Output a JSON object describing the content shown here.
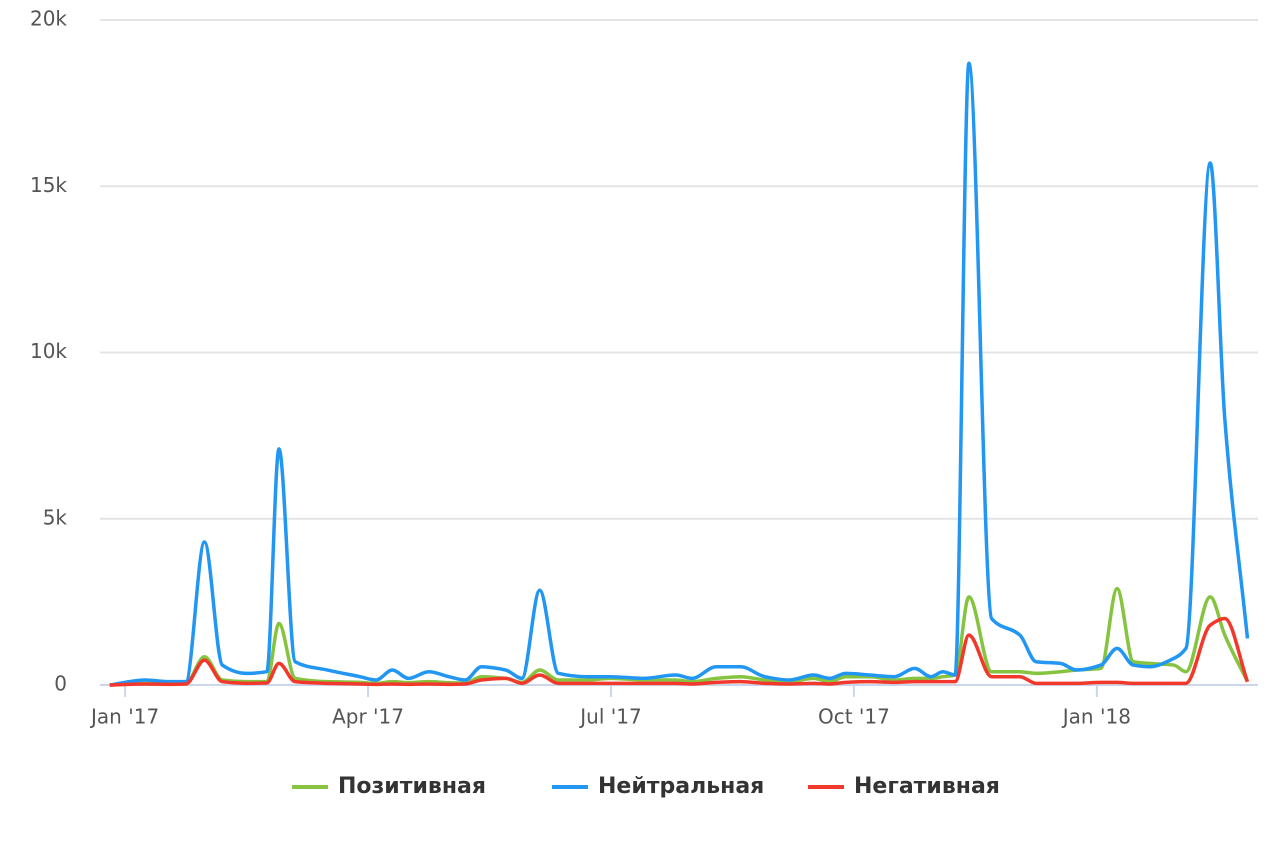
{
  "chart_data": {
    "type": "line",
    "x": [
      -0.19,
      0.25,
      0.55,
      0.75,
      0.98,
      1.2,
      1.5,
      1.75,
      1.9,
      2.1,
      2.5,
      2.9,
      3.1,
      3.3,
      3.5,
      3.75,
      4.0,
      4.2,
      4.4,
      4.7,
      4.9,
      5.12,
      5.35,
      5.7,
      6.0,
      6.4,
      6.8,
      7.0,
      7.3,
      7.6,
      7.9,
      8.2,
      8.5,
      8.7,
      8.9,
      9.2,
      9.5,
      9.75,
      9.95,
      10.1,
      10.25,
      10.42,
      10.7,
      11.05,
      11.25,
      11.55,
      11.75,
      12.05,
      12.25,
      12.45,
      12.65,
      12.95,
      13.1,
      13.4,
      13.58,
      13.86
    ],
    "series": [
      {
        "name": "Позитивная",
        "color": "#86c440",
        "values": [
          0,
          50,
          40,
          50,
          850,
          150,
          100,
          100,
          1850,
          200,
          100,
          80,
          50,
          100,
          70,
          100,
          70,
          60,
          250,
          200,
          80,
          450,
          150,
          150,
          200,
          150,
          150,
          100,
          200,
          250,
          150,
          100,
          200,
          100,
          250,
          250,
          150,
          200,
          200,
          250,
          300,
          2650,
          400,
          400,
          350,
          400,
          450,
          500,
          2900,
          700,
          650,
          600,
          400,
          2650,
          1500,
          100
        ]
      },
      {
        "name": "Нейтральная",
        "color": "#2196f3",
        "values": [
          0,
          150,
          100,
          100,
          4300,
          600,
          350,
          400,
          7100,
          700,
          450,
          250,
          150,
          450,
          200,
          400,
          250,
          150,
          550,
          450,
          200,
          2850,
          350,
          250,
          250,
          200,
          300,
          200,
          550,
          550,
          250,
          150,
          300,
          200,
          350,
          300,
          250,
          500,
          250,
          400,
          300,
          18700,
          2000,
          1500,
          700,
          650,
          450,
          600,
          1100,
          600,
          550,
          800,
          1100,
          15700,
          8000,
          1400
        ]
      },
      {
        "name": "Негативная",
        "color": "#f2382b",
        "values": [
          0,
          30,
          20,
          30,
          750,
          100,
          50,
          60,
          650,
          100,
          50,
          30,
          20,
          30,
          20,
          30,
          20,
          30,
          150,
          200,
          50,
          300,
          50,
          50,
          50,
          50,
          50,
          30,
          80,
          100,
          50,
          30,
          50,
          30,
          80,
          100,
          80,
          100,
          100,
          100,
          100,
          1500,
          250,
          250,
          50,
          50,
          50,
          80,
          80,
          50,
          50,
          50,
          50,
          1800,
          2000,
          100
        ]
      }
    ],
    "xlim": [
      -0.31,
      13.99
    ],
    "xticks": [
      {
        "value": 0,
        "label": "Jan '17"
      },
      {
        "value": 3,
        "label": "Apr '17"
      },
      {
        "value": 6,
        "label": "Jul '17"
      },
      {
        "value": 9,
        "label": "Oct '17"
      },
      {
        "value": 12,
        "label": "Jan '18"
      }
    ],
    "ylim": [
      0,
      20000
    ],
    "yticks": [
      0,
      {
        "value": 5000,
        "label": "5k"
      },
      {
        "value": 10000,
        "label": "10k"
      },
      {
        "value": 15000,
        "label": "15k"
      },
      {
        "value": 20000,
        "label": "20k"
      }
    ],
    "grid": true,
    "legend": "bottom"
  }
}
